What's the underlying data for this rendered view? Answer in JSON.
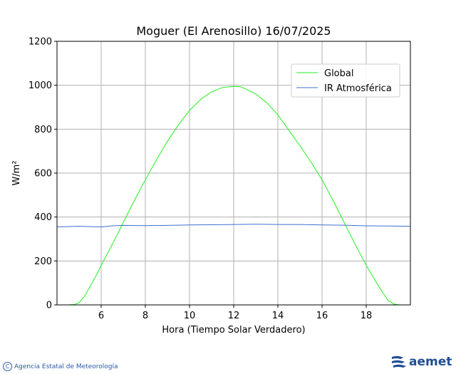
{
  "chart_data": {
    "type": "line",
    "title": "Moguer (El Arenosillo) 16/07/2025",
    "xlabel": "Hora (Tiempo Solar Verdadero)",
    "ylabel": "W/m²",
    "xlim": [
      4,
      20
    ],
    "ylim": [
      0,
      1200
    ],
    "xticks": [
      6,
      8,
      10,
      12,
      14,
      16,
      18
    ],
    "yticks": [
      0,
      200,
      400,
      600,
      800,
      1000,
      1200
    ],
    "grid": true,
    "legend": "top-right",
    "series": [
      {
        "name": "Global",
        "color": "#22ee22",
        "x": [
          4.0,
          4.5,
          4.8,
          5.0,
          5.25,
          5.5,
          5.75,
          6.0,
          6.5,
          7.0,
          7.5,
          8.0,
          8.5,
          9.0,
          9.5,
          10.0,
          10.5,
          11.0,
          11.5,
          12.0,
          12.3,
          12.5,
          13.0,
          13.5,
          14.0,
          14.5,
          15.0,
          15.5,
          16.0,
          16.5,
          17.0,
          17.5,
          18.0,
          18.5,
          18.75,
          19.0,
          19.25,
          19.5,
          20.0
        ],
        "y": [
          0,
          0,
          2,
          10,
          40,
          85,
          130,
          180,
          275,
          375,
          475,
          570,
          660,
          745,
          820,
          885,
          935,
          970,
          990,
          995,
          993,
          985,
          960,
          920,
          865,
          795,
          725,
          650,
          570,
          475,
          375,
          275,
          180,
          95,
          55,
          20,
          4,
          0,
          0
        ]
      },
      {
        "name": "IR Atmosférica",
        "color": "#3f6fd0",
        "x": [
          4.0,
          5.0,
          6.0,
          6.5,
          7.0,
          8.0,
          9.0,
          10.0,
          11.0,
          12.0,
          13.0,
          14.0,
          15.0,
          16.0,
          17.0,
          18.0,
          19.0,
          20.0
        ],
        "y": [
          355,
          358,
          355,
          360,
          362,
          361,
          362,
          364,
          365,
          366,
          367,
          366,
          366,
          364,
          363,
          360,
          359,
          358
        ]
      }
    ]
  },
  "footer": {
    "agency": "Agencia Estatal de Meteorología",
    "copyright_symbol": "C",
    "logo_text": "aemet",
    "logo_icon": "aemet-logo-icon"
  }
}
